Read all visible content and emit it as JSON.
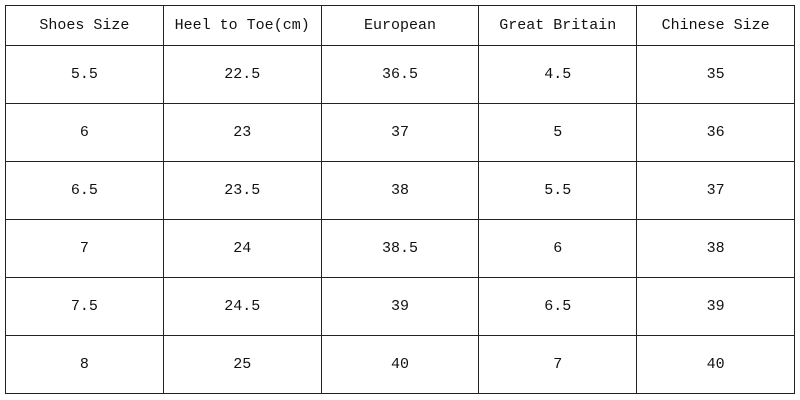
{
  "table": {
    "header": [
      "Shoes Size",
      "Heel to Toe(cm)",
      "European",
      "Great Britain",
      "Chinese Size"
    ],
    "rows": [
      [
        "5.5",
        "22.5",
        "36.5",
        "4.5",
        "35"
      ],
      [
        "6",
        "23",
        "37",
        "5",
        "36"
      ],
      [
        "6.5",
        "23.5",
        "38",
        "5.5",
        "37"
      ],
      [
        "7",
        "24",
        "38.5",
        "6",
        "38"
      ],
      [
        "7.5",
        "24.5",
        "39",
        "6.5",
        "39"
      ],
      [
        "8",
        "25",
        "40",
        "7",
        "40"
      ]
    ]
  }
}
